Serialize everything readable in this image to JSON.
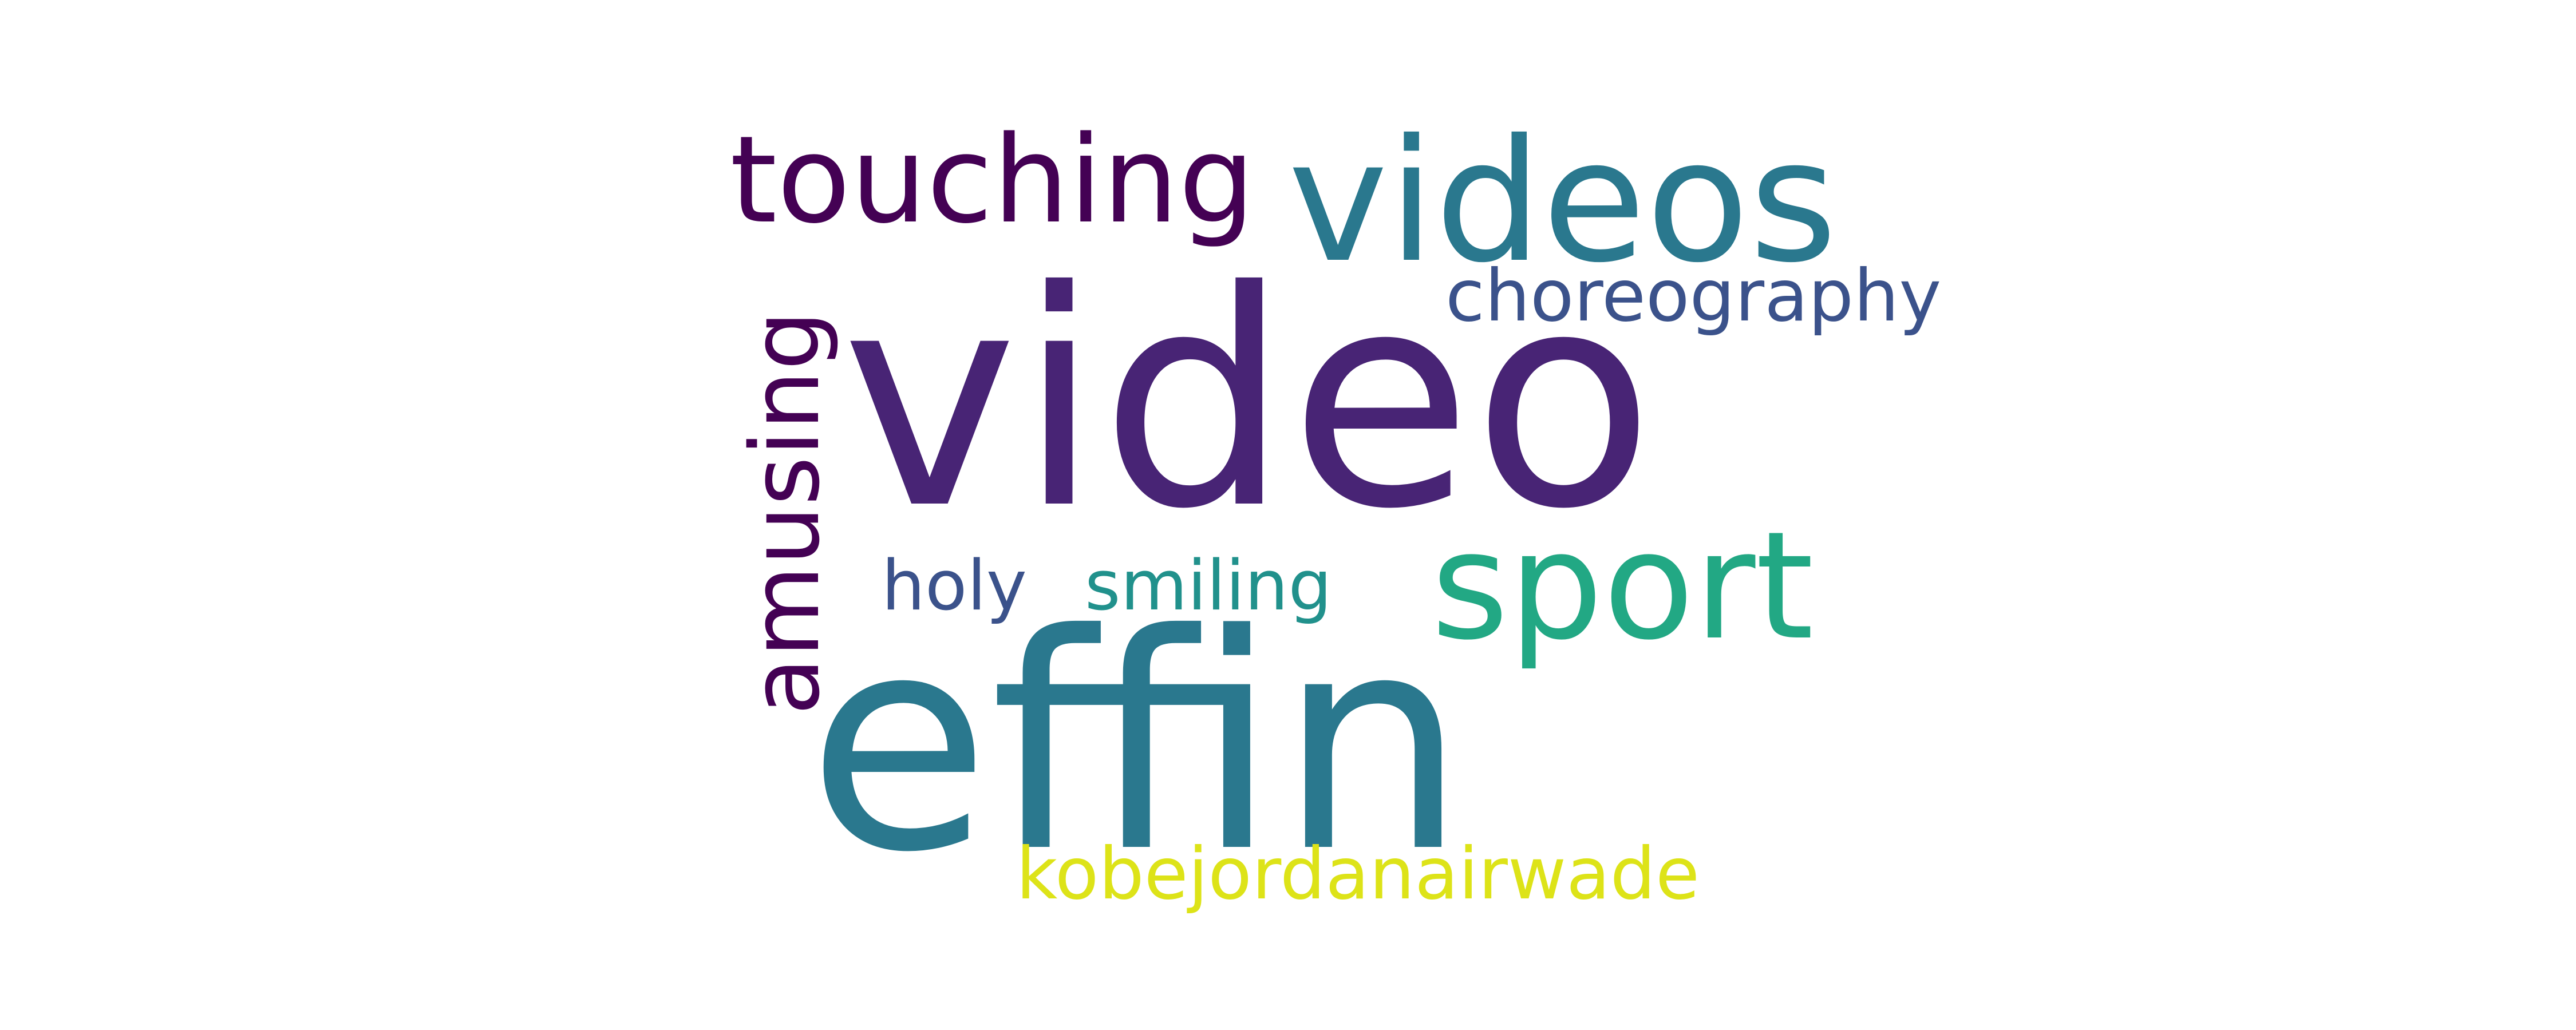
{
  "words": {
    "video": {
      "text": "video",
      "color": "#482475"
    },
    "effin": {
      "text": "effin",
      "color": "#2a788e"
    },
    "videos": {
      "text": "videos",
      "color": "#2a788e"
    },
    "sport": {
      "text": "sport",
      "color": "#22a884"
    },
    "touching": {
      "text": "touching",
      "color": "#440154"
    },
    "amusing": {
      "text": "amusing",
      "color": "#440154"
    },
    "choreography": {
      "text": "choreography",
      "color": "#3b528b"
    },
    "holy": {
      "text": "holy",
      "color": "#3b528b"
    },
    "smiling": {
      "text": "smiling",
      "color": "#21918c"
    },
    "kobe": {
      "text": "kobejordanairwade",
      "color": "#dde318"
    }
  }
}
